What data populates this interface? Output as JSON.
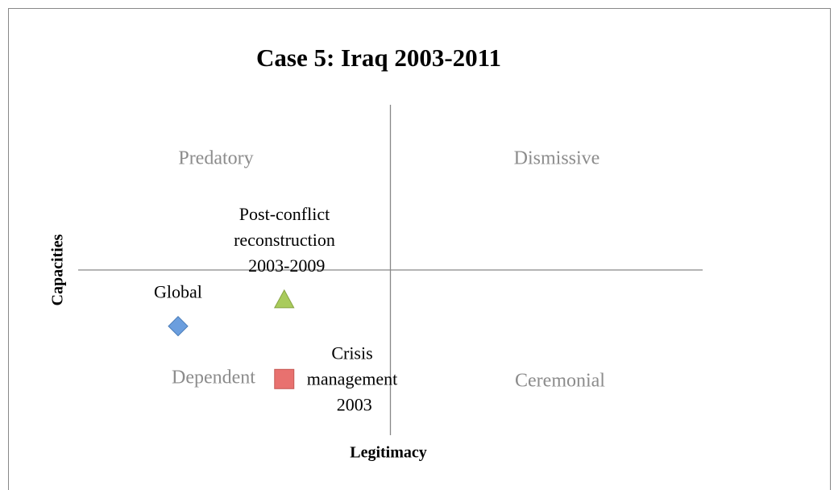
{
  "chart_data": {
    "type": "scatter",
    "title": "Case 5: Iraq 2003-2011",
    "x_label": "Legitimacy",
    "y_label": "Capacities",
    "xlim": [
      -5,
      5
    ],
    "ylim": [
      -5,
      5
    ],
    "quadrants": [
      "Predatory",
      "Dismissive",
      "Dependent",
      "Ceremonial"
    ],
    "series": [
      {
        "name": "Global",
        "marker": "diamond",
        "color": "#6b9ede",
        "x": [
          -3.4
        ],
        "values": [
          -1.7
        ]
      },
      {
        "name": "Post-conflict reconstruction 2003-2009",
        "marker": "triangle",
        "color": "#a9cb5c",
        "x": [
          -1.7
        ],
        "values": [
          -0.9
        ]
      },
      {
        "name": "Crisis management 2003",
        "marker": "square",
        "color": "#e8716f",
        "x": [
          -1.7
        ],
        "values": [
          -3.3
        ]
      }
    ]
  }
}
